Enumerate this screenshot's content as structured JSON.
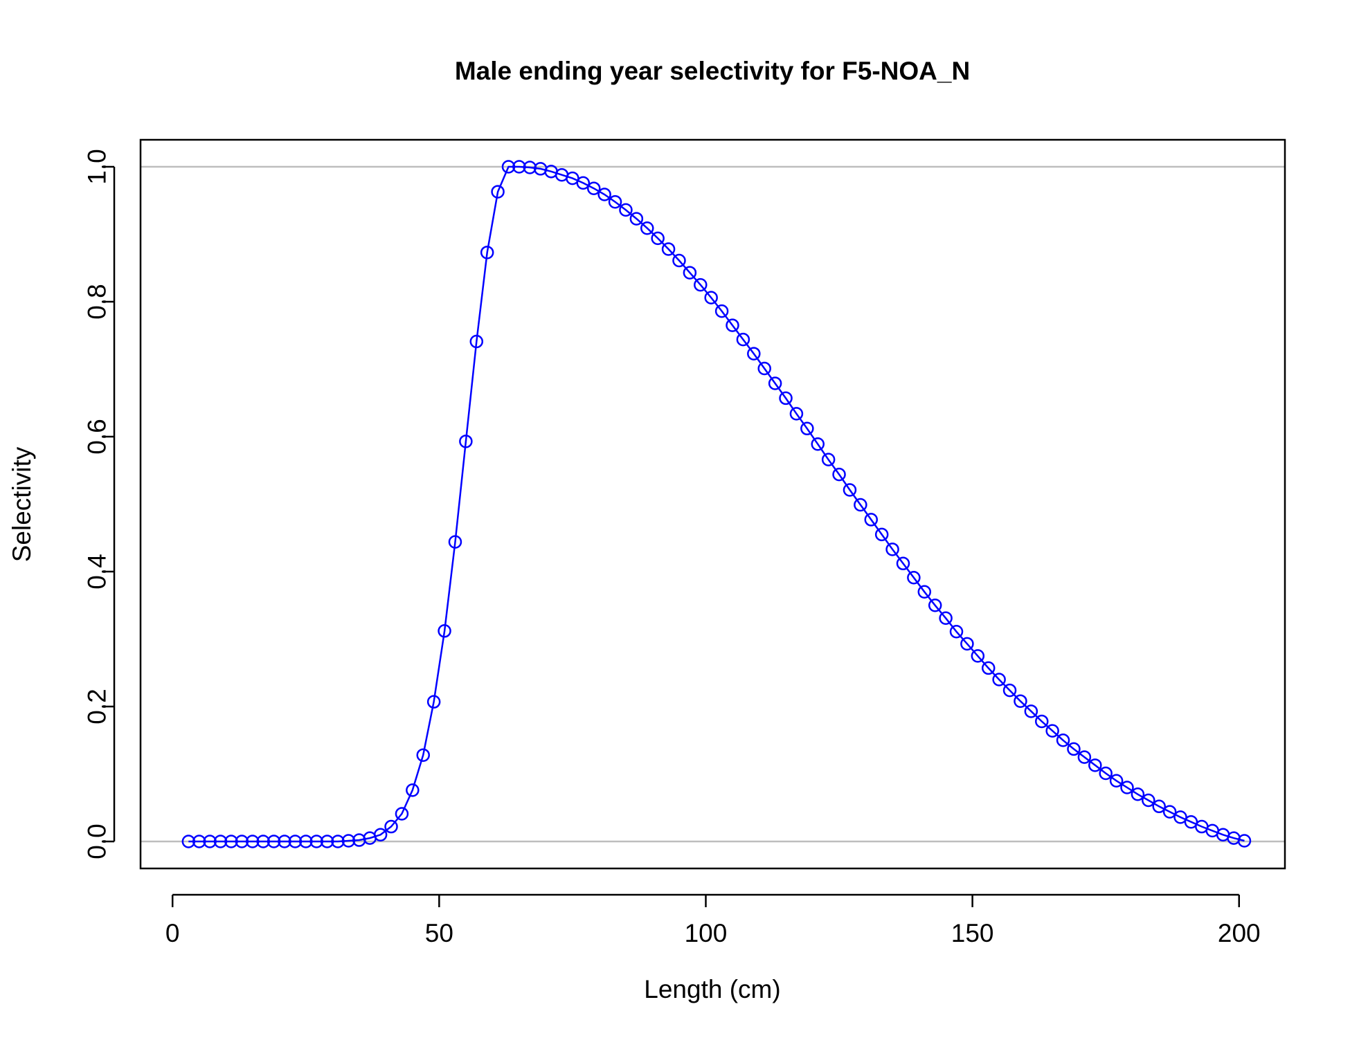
{
  "chart_data": {
    "type": "line",
    "title": "Male ending year selectivity for F5-NOA_N",
    "xlabel": "Length (cm)",
    "ylabel": "Selectivity",
    "xlim": [
      -6,
      208.6
    ],
    "ylim": [
      -0.04,
      1.04
    ],
    "xticks": [
      0,
      50,
      100,
      150,
      200
    ],
    "yticks": [
      0.0,
      0.2,
      0.4,
      0.6,
      0.8,
      1.0
    ],
    "xtick_labels": [
      "0",
      "50",
      "100",
      "150",
      "200"
    ],
    "ytick_labels": [
      "0.0",
      "0.2",
      "0.4",
      "0.6",
      "0.8",
      "1.0"
    ],
    "reference_lines_y": [
      0,
      1
    ],
    "grid": false,
    "legend": "none",
    "colors": {
      "series": "#0000ff",
      "reference": "#bebebe"
    },
    "series": [
      {
        "x": [
          3,
          5,
          7,
          9,
          11,
          13,
          15,
          17,
          19,
          21,
          23,
          25,
          27,
          29,
          31,
          33,
          35,
          37,
          39,
          41,
          43,
          45,
          47,
          49,
          51,
          53,
          55,
          57,
          59,
          61,
          63,
          65,
          67,
          69,
          71,
          73,
          75,
          77,
          79,
          81,
          83,
          85,
          87,
          89,
          91,
          93,
          95,
          97,
          99,
          101,
          103,
          105,
          107,
          109,
          111,
          113,
          115,
          117,
          119,
          121,
          123,
          125,
          127,
          129,
          131,
          133,
          135,
          137,
          139,
          141,
          143,
          145,
          147,
          149,
          151,
          153,
          155,
          157,
          159,
          161,
          163,
          165,
          167,
          169,
          171,
          173,
          175,
          177,
          179,
          181,
          183,
          185,
          187,
          189,
          191,
          193,
          195,
          197,
          199,
          201
        ],
        "values": [
          0,
          0,
          0,
          0,
          0,
          0,
          0,
          0,
          0,
          0,
          0,
          0,
          0,
          0,
          0,
          0.001,
          0.002,
          0.005,
          0.01,
          0.022,
          0.041,
          0.076,
          0.128,
          0.207,
          0.312,
          0.444,
          0.593,
          0.741,
          0.873,
          0.963,
          1.0,
          1.0,
          0.999,
          0.997,
          0.993,
          0.988,
          0.983,
          0.976,
          0.968,
          0.959,
          0.948,
          0.936,
          0.923,
          0.909,
          0.894,
          0.878,
          0.861,
          0.843,
          0.825,
          0.806,
          0.786,
          0.765,
          0.744,
          0.723,
          0.701,
          0.679,
          0.657,
          0.634,
          0.612,
          0.589,
          0.566,
          0.544,
          0.521,
          0.499,
          0.477,
          0.455,
          0.433,
          0.412,
          0.391,
          0.37,
          0.35,
          0.331,
          0.311,
          0.293,
          0.275,
          0.257,
          0.24,
          0.224,
          0.208,
          0.193,
          0.178,
          0.164,
          0.15,
          0.137,
          0.125,
          0.113,
          0.101,
          0.09,
          0.08,
          0.07,
          0.061,
          0.052,
          0.044,
          0.036,
          0.029,
          0.022,
          0.016,
          0.01,
          0.005,
          0.001
        ]
      }
    ]
  }
}
